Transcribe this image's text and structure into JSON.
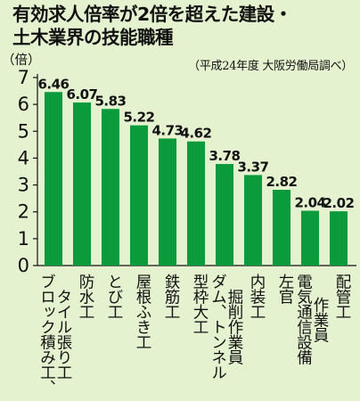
{
  "title_line1": "有効求人倍率が2倍を超えた建設・",
  "title_line2": "土木業界の技能職種",
  "source": "（平成24年度 大阪労働局調べ）",
  "unit": "（倍）",
  "colors": {
    "bar": "#0b9a3c",
    "background": "#e4f2cf",
    "axis": "#111111"
  },
  "chart_data": {
    "type": "bar",
    "title": "有効求人倍率が2倍を超えた建設・土木業界の技能職種",
    "ylabel": "（倍）",
    "ylim": [
      0,
      7
    ],
    "yticks": [
      0,
      1,
      2,
      3,
      4,
      5,
      6,
      7
    ],
    "grid": false,
    "categories": [
      "ブロック積み工、タイル張り工",
      "防水工",
      "とび工",
      "屋根ふき工",
      "鉄筋工",
      "型枠大工",
      "掘削作業員、ダム、トンネル",
      "内装工",
      "左官",
      "作業員、電気通信設備",
      "配管工"
    ],
    "label_columns": [
      [
        "タイル張り工",
        "ブロック積み工、"
      ],
      [
        "防水工"
      ],
      [
        "とび工"
      ],
      [
        "屋根ふき工"
      ],
      [
        "鉄筋工"
      ],
      [
        "型枠大工"
      ],
      [
        "掘削作業員",
        "ダム、トンネル"
      ],
      [
        "内装工"
      ],
      [
        "左官"
      ],
      [
        "作業員",
        "電気通信設備"
      ],
      [
        "配管工"
      ]
    ],
    "values": [
      6.46,
      6.07,
      5.83,
      5.22,
      4.73,
      4.62,
      3.78,
      3.37,
      2.82,
      2.04,
      2.02
    ],
    "value_labels": [
      "6.46",
      "6.07",
      "5.83",
      "5.22",
      "4.73",
      "4.62",
      "3.78",
      "3.37",
      "2.82",
      "2.04",
      "2.02"
    ]
  }
}
